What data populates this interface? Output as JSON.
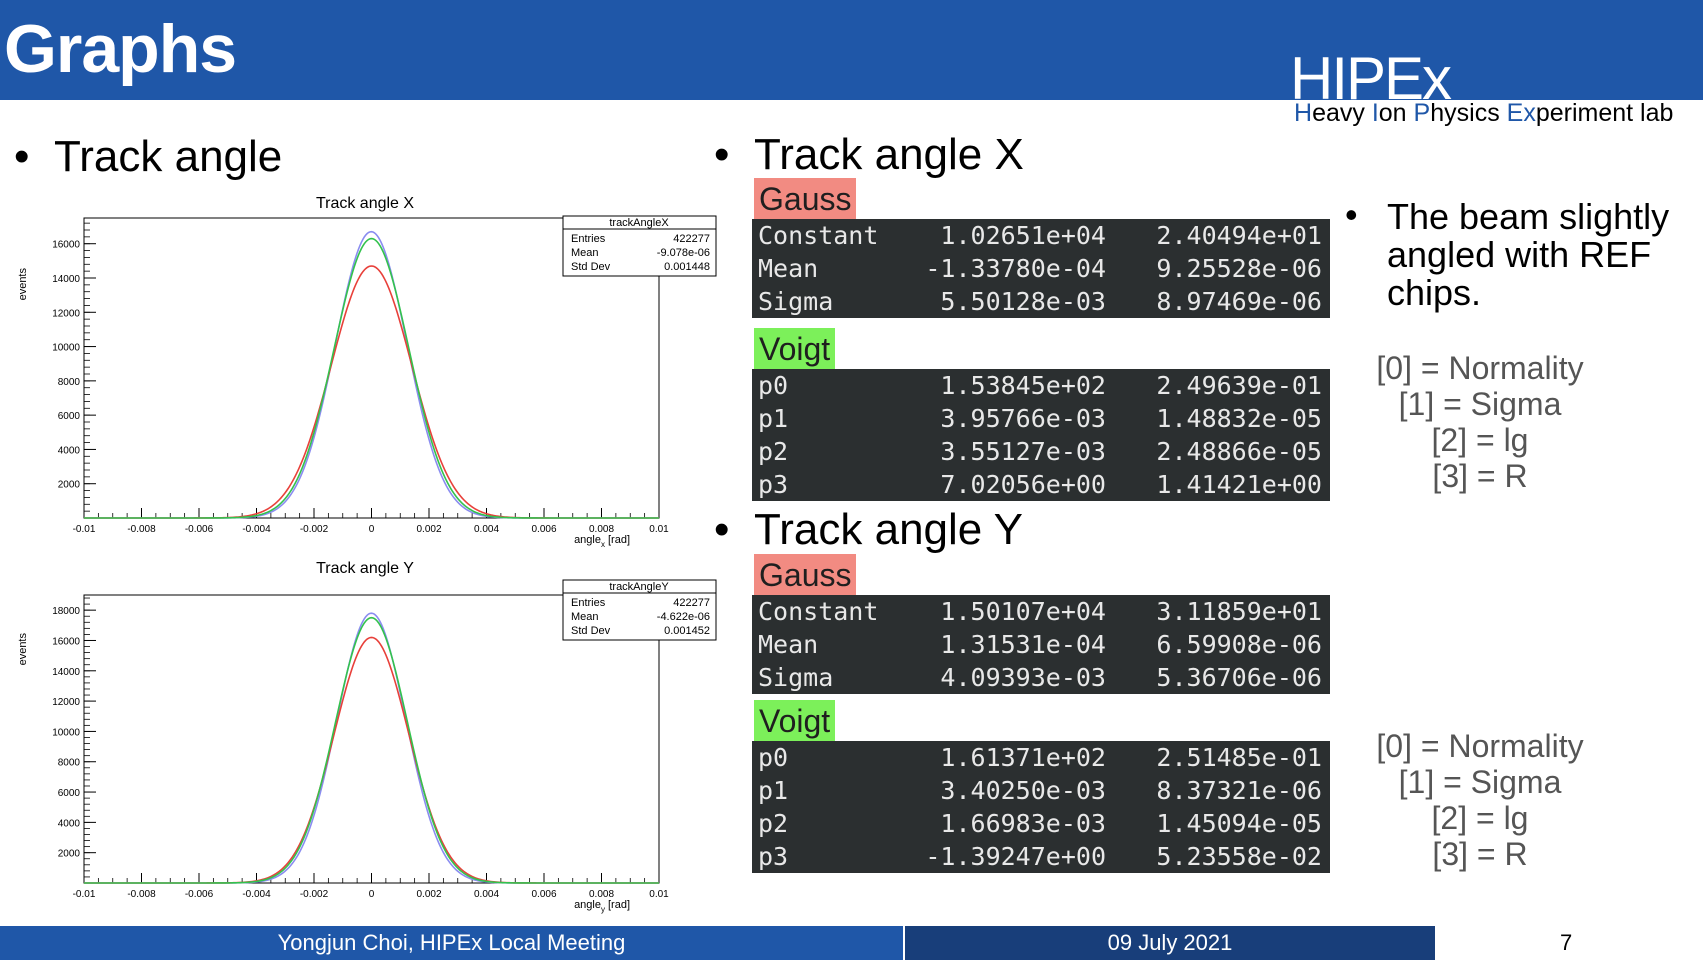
{
  "header": {
    "title": "Graphs",
    "logo": "HIPEx",
    "tagline": {
      "H": "H",
      "eavy": "eavy ",
      "I": "I",
      "on": "on ",
      "P": "P",
      "hysics": "hysics ",
      "Ex": "Ex",
      "periment": "periment lab"
    }
  },
  "left": {
    "bullet": "Track angle",
    "plot_x": {
      "title": "Track angle X",
      "ylabel": "events",
      "xlabel": "angle",
      "xlabel_sub": "x",
      "xunit": "[rad]",
      "stats": {
        "name": "trackAngleX",
        "entries_label": "Entries",
        "entries": "422277",
        "mean_label": "Mean",
        "mean": "-9.078e-06",
        "std_label": "Std Dev",
        "std": "0.001448"
      }
    },
    "plot_y": {
      "title": "Track angle Y",
      "ylabel": "events",
      "xlabel": "angle",
      "xlabel_sub": "y",
      "xunit": "[rad]",
      "stats": {
        "name": "trackAngleY",
        "entries_label": "Entries",
        "entries": "422277",
        "mean_label": "Mean",
        "mean": "-4.622e-06",
        "std_label": "Std Dev",
        "std": "0.001452"
      }
    }
  },
  "chart_data": [
    {
      "type": "line",
      "title": "Track angle X",
      "xlabel": "angle_x [rad]",
      "ylabel": "events",
      "xlim": [
        -0.01,
        0.01
      ],
      "ylim": [
        0,
        17500
      ],
      "xticks": [
        "-0.01",
        "-0.008",
        "-0.006",
        "-0.004",
        "-0.002",
        "0",
        "0.002",
        "0.004",
        "0.006",
        "0.008",
        "0.01"
      ],
      "yticks": [
        "2000",
        "4000",
        "6000",
        "8000",
        "10000",
        "12000",
        "14000",
        "16000"
      ],
      "series": [
        {
          "color": "#8a8cf0",
          "peak": 16700,
          "mean": -9.1e-06,
          "sigma": 0.00125
        },
        {
          "color": "#e8403a",
          "peak": 14700,
          "mean": 0.0,
          "sigma": 0.0014
        },
        {
          "color": "#33c24d",
          "peak": 16300,
          "mean": 0.0,
          "sigma": 0.0013
        }
      ]
    },
    {
      "type": "line",
      "title": "Track angle Y",
      "xlabel": "angle_y [rad]",
      "ylabel": "events",
      "xlim": [
        -0.01,
        0.01
      ],
      "ylim": [
        0,
        19000
      ],
      "xticks": [
        "-0.01",
        "-0.008",
        "-0.006",
        "-0.004",
        "-0.002",
        "0",
        "0.002",
        "0.004",
        "0.006",
        "0.008",
        "0.01"
      ],
      "yticks": [
        "2000",
        "4000",
        "6000",
        "8000",
        "10000",
        "12000",
        "14000",
        "16000",
        "18000"
      ],
      "series": [
        {
          "color": "#8a8cf0",
          "peak": 17800,
          "mean": -4.6e-06,
          "sigma": 0.0012
        },
        {
          "color": "#e8403a",
          "peak": 16200,
          "mean": 0.0,
          "sigma": 0.0013
        },
        {
          "color": "#33c24d",
          "peak": 17500,
          "mean": 0.0,
          "sigma": 0.00125
        }
      ]
    }
  ],
  "right": {
    "x": {
      "bullet": "Track angle X",
      "gauss_label": "Gauss",
      "gauss": [
        [
          "Constant",
          "1.02651e+04",
          "2.40494e+01"
        ],
        [
          "Mean",
          "-1.33780e-04",
          "9.25528e-06"
        ],
        [
          "Sigma",
          "5.50128e-03",
          "8.97469e-06"
        ]
      ],
      "voigt_label": "Voigt",
      "voigt": [
        [
          "p0",
          "1.53845e+02",
          "2.49639e-01"
        ],
        [
          "p1",
          "3.95766e-03",
          "1.48832e-05"
        ],
        [
          "p2",
          "3.55127e-03",
          "2.48866e-05"
        ],
        [
          "p3",
          "7.02056e+00",
          "1.41421e+00"
        ]
      ]
    },
    "y": {
      "bullet": "Track angle Y",
      "gauss_label": "Gauss",
      "gauss": [
        [
          "Constant",
          "1.50107e+04",
          "3.11859e+01"
        ],
        [
          "Mean",
          "1.31531e-04",
          "6.59908e-06"
        ],
        [
          "Sigma",
          "4.09393e-03",
          "5.36706e-06"
        ]
      ],
      "voigt_label": "Voigt",
      "voigt": [
        [
          "p0",
          "1.61371e+02",
          "2.51485e-01"
        ],
        [
          "p1",
          "3.40250e-03",
          "8.37321e-06"
        ],
        [
          "p2",
          "1.66983e-03",
          "1.45094e-05"
        ],
        [
          "p3",
          "-1.39247e+00",
          "5.23558e-02"
        ]
      ]
    }
  },
  "note": {
    "line1": "The beam slightly",
    "line2": "angled with REF",
    "line3": "chips."
  },
  "legend": [
    "[0] = Normality",
    "[1] = Sigma",
    "[2] = lg",
    "[3] = R"
  ],
  "footer": {
    "left": "Yongjun Choi, HIPEx Local Meeting",
    "date": "09 July 2021",
    "page": "7"
  }
}
